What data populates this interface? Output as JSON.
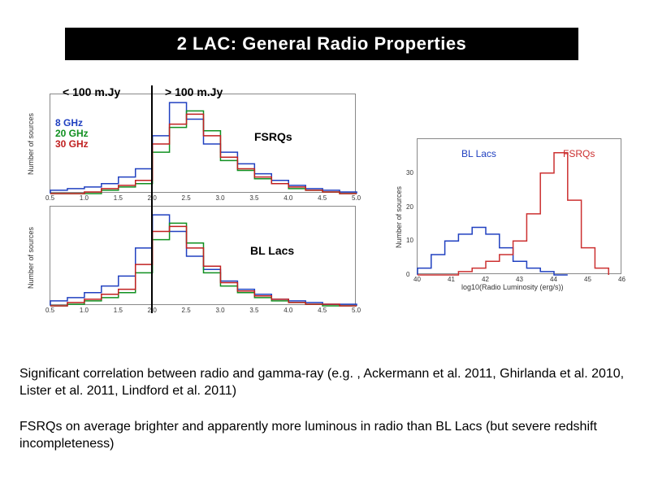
{
  "title": "2 LAC: General Radio Properties",
  "annotations": {
    "lt100": "< 100 m.Jy",
    "gt100": "> 100 m.Jy",
    "fsrqs": "FSRQs",
    "bllacs": "BL Lacs"
  },
  "legend_left": {
    "items": [
      {
        "label": "8 GHz",
        "color": "#2040c0"
      },
      {
        "label": "20 GHz",
        "color": "#109020"
      },
      {
        "label": "30 GHz",
        "color": "#c02020"
      }
    ]
  },
  "colors": {
    "fsrq": "#cc3030",
    "bllac": "#2040c0",
    "axis": "#555",
    "bg": "#ffffff"
  },
  "left_charts": {
    "x_min": 0.5,
    "x_max": 5.0,
    "x_ticks": [
      0.5,
      1.0,
      1.5,
      2.0,
      2.5,
      3.0,
      3.5,
      4.0,
      4.5,
      5.0
    ],
    "ylabel": "Number of sources",
    "vline_at": 2.0,
    "top": {
      "y_max": 60,
      "series": {
        "8GHz": {
          "color": "#2040c0",
          "vals": [
            2,
            3,
            4,
            6,
            10,
            15,
            35,
            55,
            45,
            30,
            25,
            18,
            12,
            8,
            5,
            3,
            2,
            1
          ]
        },
        "20GHz": {
          "color": "#109020",
          "vals": [
            0,
            0,
            0,
            2,
            4,
            6,
            25,
            40,
            50,
            38,
            20,
            14,
            9,
            6,
            3,
            2,
            1,
            0
          ]
        },
        "30GHz": {
          "color": "#c02020",
          "vals": [
            0,
            0,
            1,
            3,
            5,
            8,
            30,
            42,
            48,
            35,
            22,
            15,
            10,
            6,
            4,
            2,
            1,
            0
          ]
        }
      }
    },
    "bottom": {
      "y_max": 60,
      "series": {
        "8GHz": {
          "color": "#2040c0",
          "vals": [
            3,
            5,
            8,
            12,
            18,
            35,
            55,
            45,
            30,
            22,
            15,
            10,
            7,
            4,
            3,
            2,
            1,
            1
          ]
        },
        "20GHz": {
          "color": "#109020",
          "vals": [
            0,
            1,
            3,
            5,
            8,
            20,
            40,
            50,
            38,
            20,
            12,
            8,
            5,
            3,
            2,
            1,
            0,
            0
          ]
        },
        "30GHz": {
          "color": "#c02020",
          "vals": [
            0,
            2,
            4,
            7,
            10,
            25,
            45,
            48,
            35,
            24,
            14,
            9,
            6,
            4,
            2,
            1,
            1,
            0
          ]
        }
      }
    }
  },
  "right_chart": {
    "x_min": 40,
    "x_max": 46,
    "x_ticks": [
      40,
      41,
      42,
      43,
      44,
      45,
      46
    ],
    "xlabel": "log10(Radio Luminosity (erg/s))",
    "ylabel": "Number of sources",
    "y_max": 40,
    "y_ticks": [
      0,
      10,
      20,
      30
    ],
    "series": {
      "bllac": {
        "color": "#2040c0",
        "centers": [
          40.2,
          40.6,
          41.0,
          41.4,
          41.8,
          42.2,
          42.6,
          43.0,
          43.4,
          43.8,
          44.2
        ],
        "vals": [
          2,
          6,
          10,
          12,
          14,
          12,
          8,
          4,
          2,
          1,
          0
        ]
      },
      "fsrq": {
        "color": "#cc3030",
        "centers": [
          40.2,
          40.6,
          41.0,
          41.4,
          41.8,
          42.2,
          42.6,
          43.0,
          43.4,
          43.8,
          44.2,
          44.6,
          45.0,
          45.4
        ],
        "vals": [
          0,
          0,
          0,
          1,
          2,
          4,
          6,
          10,
          18,
          30,
          36,
          22,
          8,
          2
        ]
      }
    }
  },
  "body": {
    "p1": "Significant correlation between radio and gamma-ray (e.g. , Ackermann et al. 2011, Ghirlanda et al. 2010, Lister et al. 2011, Lindford et al. 2011)",
    "p2": "FSRQs on average brighter and apparently more luminous in radio than BL Lacs (but severe redshift incompleteness)"
  }
}
